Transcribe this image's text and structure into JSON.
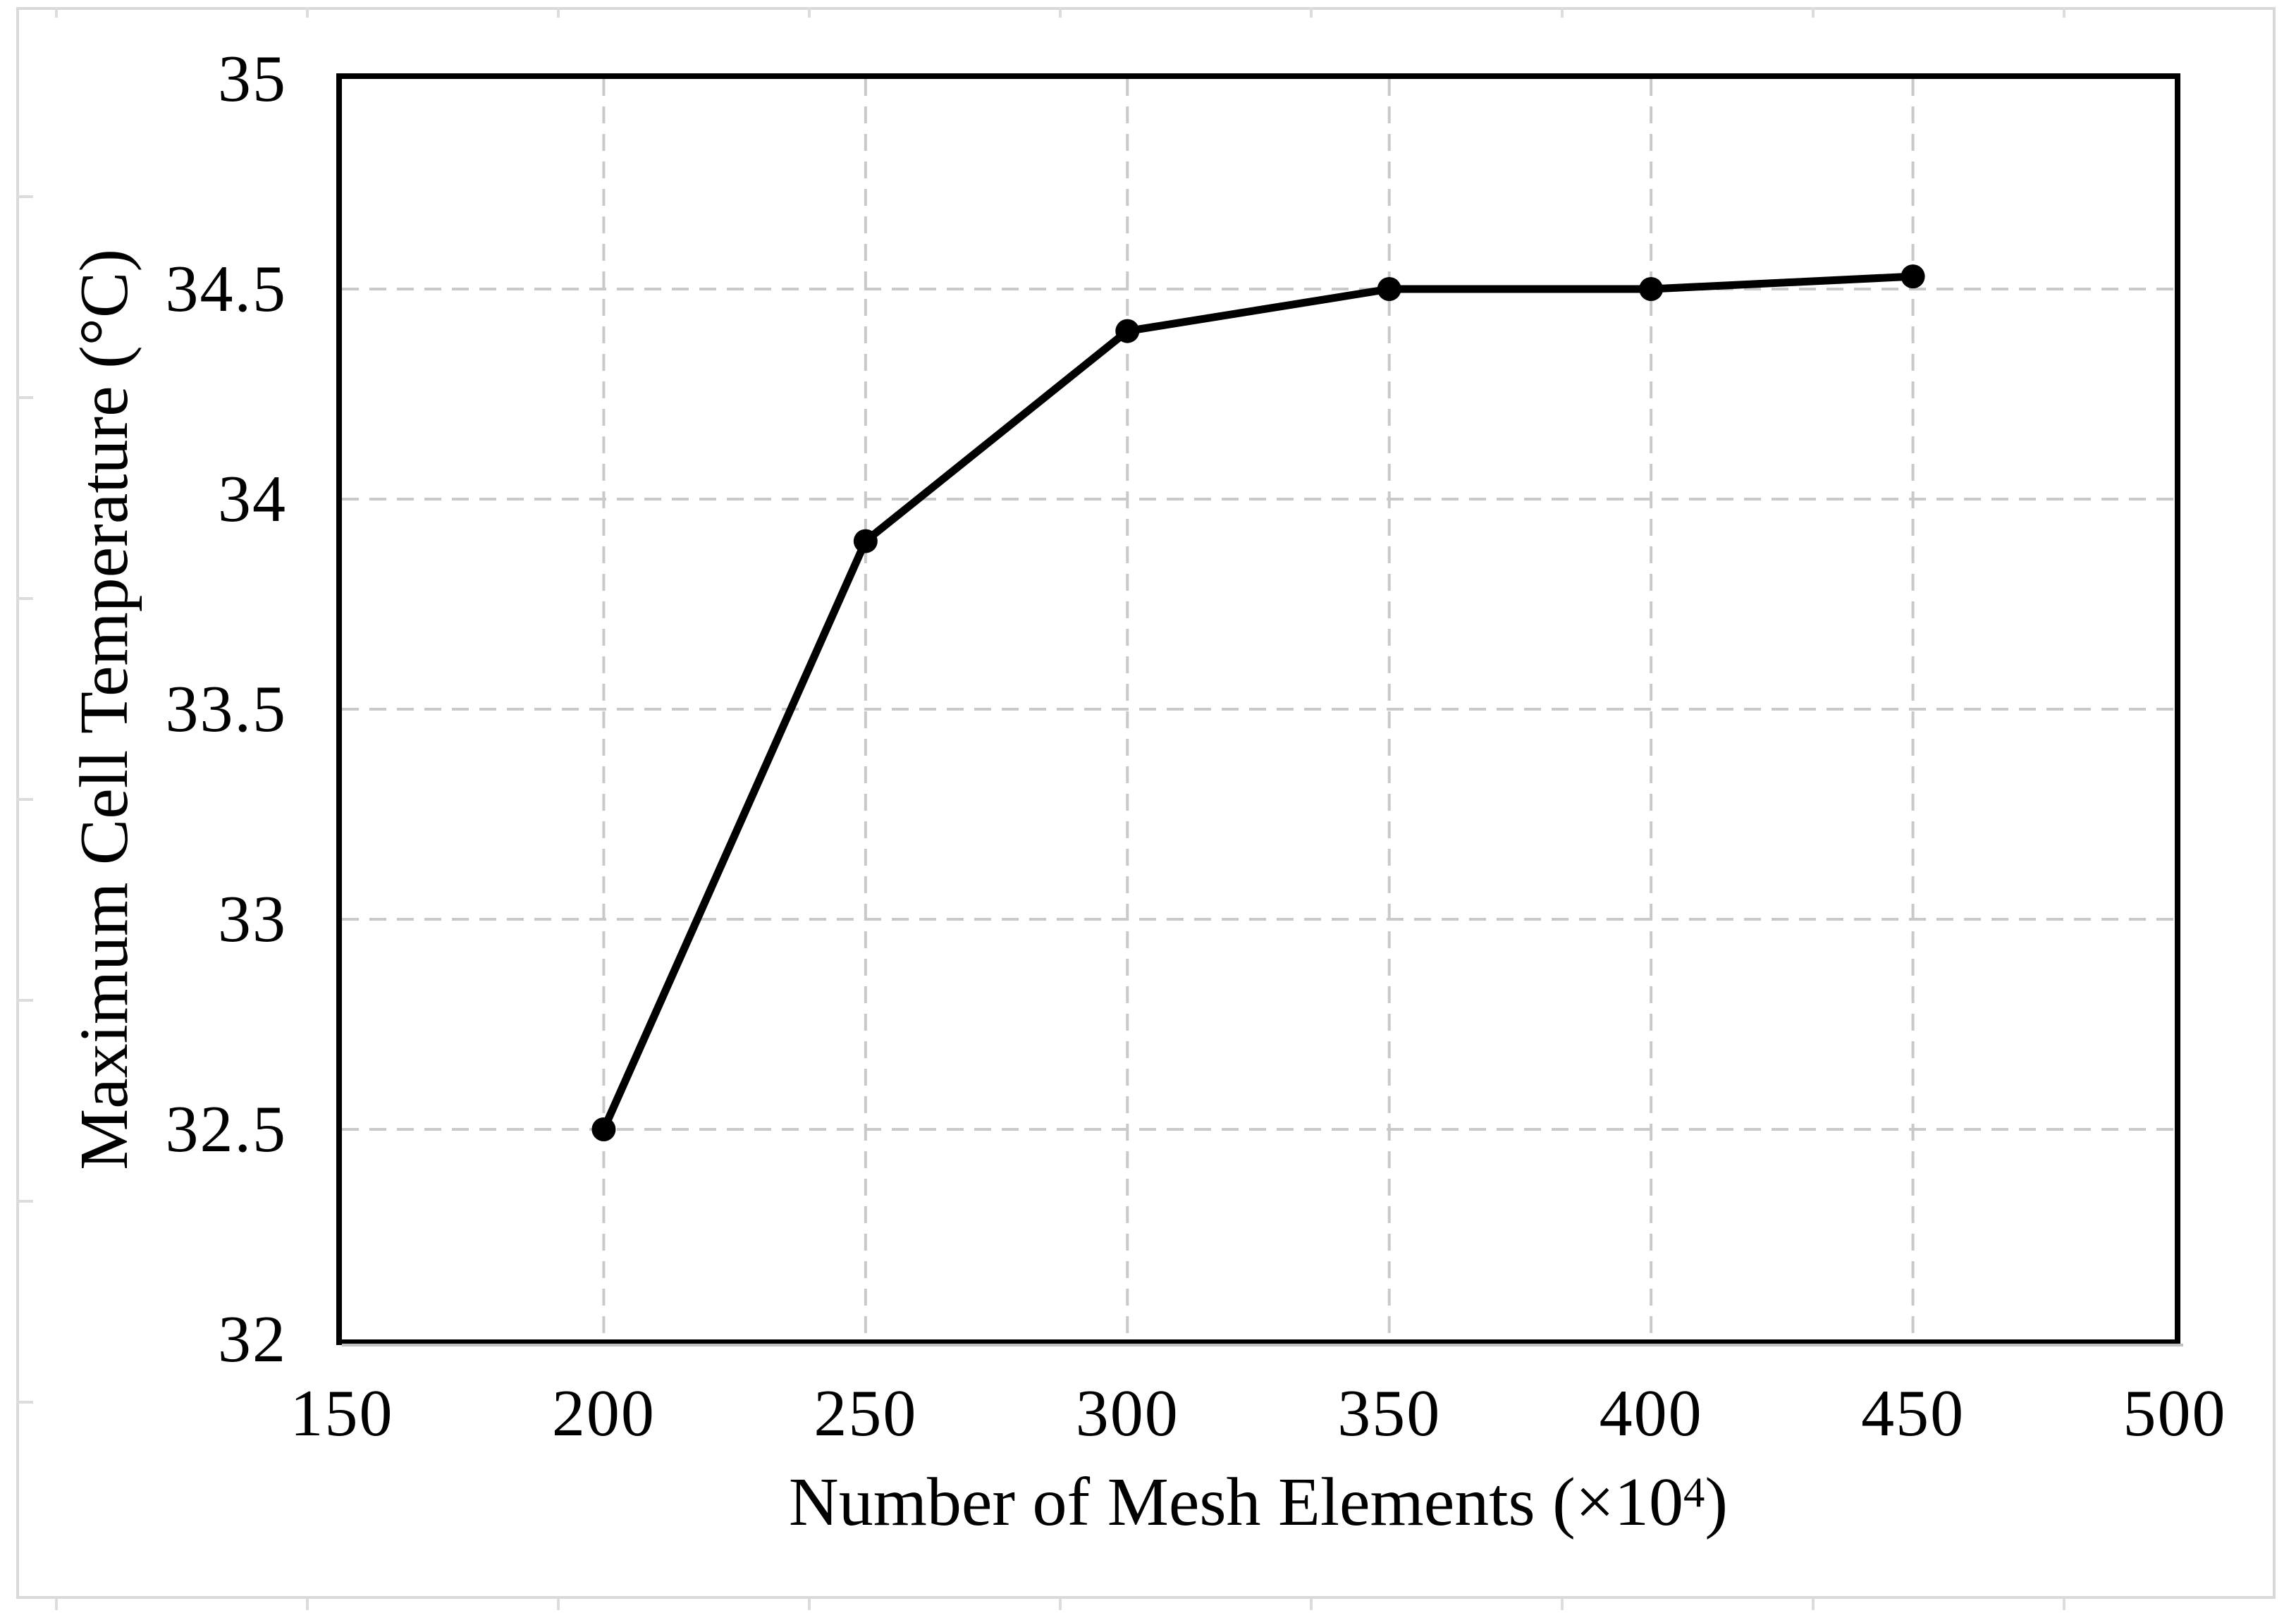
{
  "chart_data": {
    "type": "line",
    "title": "",
    "xlabel": "Number of Mesh Elements (×10⁴)",
    "xlabel_parts": {
      "prefix": "Number of Mesh Elements (×10",
      "superscript": "4",
      "suffix": ")"
    },
    "ylabel": "Maximum Cell Temperature (°C)",
    "series": [
      {
        "name": "Maximum Cell Temperature",
        "x": [
          200,
          250,
          300,
          350,
          400,
          450
        ],
        "y": [
          32.5,
          33.9,
          34.4,
          34.5,
          34.5,
          34.53
        ]
      }
    ],
    "xlim": [
      150,
      500
    ],
    "ylim": [
      32,
      35
    ],
    "x_ticks": [
      150,
      200,
      250,
      300,
      350,
      400,
      450,
      500
    ],
    "x_tick_labels": [
      "150",
      "200",
      "250",
      "300",
      "350",
      "400",
      "450",
      "500"
    ],
    "y_ticks": [
      32,
      32.5,
      33,
      33.5,
      34,
      34.5,
      35
    ],
    "y_tick_labels": [
      "32",
      "32.5",
      "33",
      "33.5",
      "34",
      "34.5",
      "35"
    ],
    "grid_x_values": [
      200,
      250,
      300,
      350,
      400,
      450
    ],
    "grid_y_values": [
      32.5,
      33,
      33.5,
      34,
      34.5
    ],
    "grid_style": "dashed",
    "legend": "none",
    "colors": {
      "series": "#000000",
      "marker": "#000000",
      "gridline": "#c9c9c9",
      "axis_box": "#000000",
      "frame": "#d9d9d9",
      "background": "#ffffff"
    }
  }
}
